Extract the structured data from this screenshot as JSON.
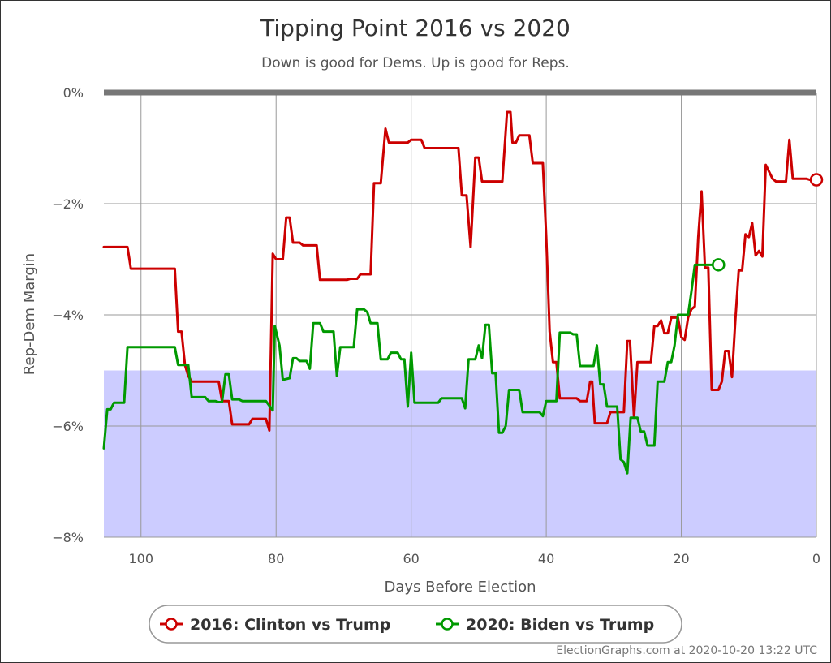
{
  "chart_data": {
    "type": "line",
    "title": "Tipping Point 2016 vs 2020",
    "subtitle": "Down is good for Dems. Up is good for Reps.",
    "xlabel": "Days Before Election",
    "ylabel": "Rep-Dem Margin",
    "xlim": [
      105.5,
      0
    ],
    "ylim": [
      -8,
      0
    ],
    "x_ticks": [
      100,
      80,
      60,
      40,
      20,
      0
    ],
    "y_ticks": [
      0,
      -2,
      -4,
      -6,
      -8
    ],
    "y_tick_labels": [
      "0%",
      "−2%",
      "−4%",
      "−6%",
      "−8%"
    ],
    "shaded_band": {
      "from": -8,
      "to": -5,
      "color": "#ccccff"
    },
    "zero_line": {
      "value": 0,
      "color": "#777777"
    },
    "grid": true,
    "legend_position": "bottom",
    "series": [
      {
        "name": "2016: Clinton vs Trump",
        "color": "#cc0000",
        "points": [
          [
            105.5,
            -2.78
          ],
          [
            102,
            -2.78
          ],
          [
            101.5,
            -3.17
          ],
          [
            95,
            -3.17
          ],
          [
            94.5,
            -4.3
          ],
          [
            94,
            -4.3
          ],
          [
            93.5,
            -4.9
          ],
          [
            93,
            -5.1
          ],
          [
            92.5,
            -5.2
          ],
          [
            88.5,
            -5.2
          ],
          [
            88,
            -5.55
          ],
          [
            87,
            -5.55
          ],
          [
            86.5,
            -5.97
          ],
          [
            84,
            -5.97
          ],
          [
            83.5,
            -5.87
          ],
          [
            81.5,
            -5.87
          ],
          [
            81,
            -6.08
          ],
          [
            80.5,
            -2.9
          ],
          [
            80,
            -3.0
          ],
          [
            79,
            -3.0
          ],
          [
            78.5,
            -2.25
          ],
          [
            78,
            -2.25
          ],
          [
            77.5,
            -2.7
          ],
          [
            76.5,
            -2.7
          ],
          [
            76,
            -2.75
          ],
          [
            74,
            -2.75
          ],
          [
            73.5,
            -3.37
          ],
          [
            69.5,
            -3.37
          ],
          [
            69,
            -3.35
          ],
          [
            68,
            -3.35
          ],
          [
            67.5,
            -3.27
          ],
          [
            66,
            -3.27
          ],
          [
            65.5,
            -1.63
          ],
          [
            64.5,
            -1.63
          ],
          [
            63.8,
            -0.65
          ],
          [
            63.3,
            -0.9
          ],
          [
            60.5,
            -0.9
          ],
          [
            60,
            -0.85
          ],
          [
            58.5,
            -0.85
          ],
          [
            58,
            -1.0
          ],
          [
            53,
            -1.0
          ],
          [
            52.5,
            -1.85
          ],
          [
            51.8,
            -1.85
          ],
          [
            51.2,
            -2.78
          ],
          [
            50.5,
            -1.17
          ],
          [
            50,
            -1.17
          ],
          [
            49.5,
            -1.6
          ],
          [
            46.5,
            -1.6
          ],
          [
            45.8,
            -0.35
          ],
          [
            45.3,
            -0.35
          ],
          [
            45,
            -0.9
          ],
          [
            44.5,
            -0.9
          ],
          [
            44,
            -0.77
          ],
          [
            42.5,
            -0.77
          ],
          [
            42,
            -1.27
          ],
          [
            40.5,
            -1.27
          ],
          [
            40,
            -2.6
          ],
          [
            39.5,
            -4.3
          ],
          [
            39,
            -4.85
          ],
          [
            38.5,
            -4.85
          ],
          [
            38,
            -5.5
          ],
          [
            35.5,
            -5.5
          ],
          [
            35,
            -5.55
          ],
          [
            34,
            -5.55
          ],
          [
            33.5,
            -5.2
          ],
          [
            33.2,
            -5.2
          ],
          [
            32.8,
            -5.95
          ],
          [
            31,
            -5.95
          ],
          [
            30.5,
            -5.75
          ],
          [
            28.5,
            -5.75
          ],
          [
            28,
            -4.47
          ],
          [
            27.6,
            -4.47
          ],
          [
            27,
            -5.85
          ],
          [
            26.5,
            -4.85
          ],
          [
            24.5,
            -4.85
          ],
          [
            24,
            -4.2
          ],
          [
            23.5,
            -4.2
          ],
          [
            23,
            -4.1
          ],
          [
            22.5,
            -4.33
          ],
          [
            22,
            -4.33
          ],
          [
            21.5,
            -4.05
          ],
          [
            20.5,
            -4.05
          ],
          [
            20,
            -4.4
          ],
          [
            19.5,
            -4.45
          ],
          [
            19,
            -4.05
          ],
          [
            18.5,
            -3.9
          ],
          [
            18,
            -3.85
          ],
          [
            17.5,
            -2.6
          ],
          [
            17,
            -1.78
          ],
          [
            16.5,
            -3.15
          ],
          [
            16,
            -3.15
          ],
          [
            15.5,
            -5.35
          ],
          [
            14.5,
            -5.35
          ],
          [
            14,
            -5.2
          ],
          [
            13.5,
            -4.65
          ],
          [
            13,
            -4.65
          ],
          [
            12.5,
            -5.12
          ],
          [
            12,
            -4.1
          ],
          [
            11.5,
            -3.2
          ],
          [
            11,
            -3.2
          ],
          [
            10.5,
            -2.55
          ],
          [
            10,
            -2.6
          ],
          [
            9.5,
            -2.35
          ],
          [
            9,
            -2.93
          ],
          [
            8.5,
            -2.85
          ],
          [
            8,
            -2.95
          ],
          [
            7.5,
            -1.3
          ],
          [
            6.5,
            -1.55
          ],
          [
            6,
            -1.6
          ],
          [
            4.5,
            -1.6
          ],
          [
            4,
            -0.85
          ],
          [
            3.5,
            -1.55
          ],
          [
            1.5,
            -1.55
          ],
          [
            1,
            -1.57
          ],
          [
            0.5,
            -1.57
          ],
          [
            0,
            -1.57
          ]
        ],
        "end_marker": [
          0,
          -1.57
        ]
      },
      {
        "name": "2020: Biden vs Trump",
        "color": "#009900",
        "points": [
          [
            105.5,
            -6.4
          ],
          [
            105,
            -5.7
          ],
          [
            104.5,
            -5.7
          ],
          [
            104,
            -5.58
          ],
          [
            102.5,
            -5.58
          ],
          [
            102,
            -4.58
          ],
          [
            95,
            -4.58
          ],
          [
            94.5,
            -4.9
          ],
          [
            93,
            -4.9
          ],
          [
            92.5,
            -5.48
          ],
          [
            90.5,
            -5.48
          ],
          [
            90,
            -5.55
          ],
          [
            89,
            -5.55
          ],
          [
            88.5,
            -5.57
          ],
          [
            88,
            -5.57
          ],
          [
            87.5,
            -5.07
          ],
          [
            87,
            -5.07
          ],
          [
            86.5,
            -5.52
          ],
          [
            85.5,
            -5.52
          ],
          [
            85,
            -5.55
          ],
          [
            82,
            -5.55
          ],
          [
            81.5,
            -5.55
          ],
          [
            80.5,
            -5.72
          ],
          [
            80.2,
            -4.2
          ],
          [
            79.5,
            -4.55
          ],
          [
            79,
            -5.17
          ],
          [
            78,
            -5.14
          ],
          [
            77.5,
            -4.78
          ],
          [
            77,
            -4.78
          ],
          [
            76.5,
            -4.83
          ],
          [
            75.5,
            -4.83
          ],
          [
            75,
            -4.97
          ],
          [
            74.5,
            -4.15
          ],
          [
            73.5,
            -4.15
          ],
          [
            73,
            -4.3
          ],
          [
            71.5,
            -4.3
          ],
          [
            71,
            -5.1
          ],
          [
            70.5,
            -4.58
          ],
          [
            68.5,
            -4.58
          ],
          [
            68,
            -3.9
          ],
          [
            67,
            -3.9
          ],
          [
            66.5,
            -3.95
          ],
          [
            66,
            -4.15
          ],
          [
            65,
            -4.15
          ],
          [
            64.5,
            -4.8
          ],
          [
            63.5,
            -4.8
          ],
          [
            63,
            -4.68
          ],
          [
            62,
            -4.68
          ],
          [
            61.5,
            -4.8
          ],
          [
            61,
            -4.8
          ],
          [
            60.5,
            -5.65
          ],
          [
            60,
            -4.68
          ],
          [
            59.5,
            -5.58
          ],
          [
            56,
            -5.58
          ],
          [
            55.5,
            -5.5
          ],
          [
            52.5,
            -5.5
          ],
          [
            52,
            -5.68
          ],
          [
            51.5,
            -4.8
          ],
          [
            50.5,
            -4.8
          ],
          [
            50,
            -4.55
          ],
          [
            49.5,
            -4.78
          ],
          [
            49,
            -4.18
          ],
          [
            48.5,
            -4.18
          ],
          [
            48,
            -5.05
          ],
          [
            47.5,
            -5.05
          ],
          [
            47,
            -6.12
          ],
          [
            46.5,
            -6.12
          ],
          [
            46,
            -6.0
          ],
          [
            45.5,
            -5.35
          ],
          [
            44,
            -5.35
          ],
          [
            43.5,
            -5.75
          ],
          [
            41,
            -5.75
          ],
          [
            40.5,
            -5.82
          ],
          [
            40,
            -5.55
          ],
          [
            38.5,
            -5.55
          ],
          [
            38,
            -4.32
          ],
          [
            36.5,
            -4.32
          ],
          [
            36,
            -4.35
          ],
          [
            35.5,
            -4.35
          ],
          [
            35,
            -4.92
          ],
          [
            33,
            -4.92
          ],
          [
            32.5,
            -4.55
          ],
          [
            32,
            -5.25
          ],
          [
            31.5,
            -5.25
          ],
          [
            31,
            -5.65
          ],
          [
            29.5,
            -5.65
          ],
          [
            29,
            -6.6
          ],
          [
            28.5,
            -6.65
          ],
          [
            28,
            -6.85
          ],
          [
            27.5,
            -5.85
          ],
          [
            26.5,
            -5.85
          ],
          [
            26,
            -6.1
          ],
          [
            25.5,
            -6.1
          ],
          [
            25,
            -6.35
          ],
          [
            24,
            -6.35
          ],
          [
            23.5,
            -5.2
          ],
          [
            22.5,
            -5.2
          ],
          [
            22,
            -4.85
          ],
          [
            21.5,
            -4.85
          ],
          [
            21,
            -4.55
          ],
          [
            20.5,
            -4.0
          ],
          [
            19,
            -4.0
          ],
          [
            18.5,
            -3.58
          ],
          [
            18,
            -3.1
          ],
          [
            15,
            -3.1
          ],
          [
            14.5,
            -3.1
          ]
        ],
        "end_marker": [
          14.5,
          -3.1
        ]
      }
    ]
  },
  "credit": "ElectionGraphs.com at 2020-10-20 13:22 UTC"
}
